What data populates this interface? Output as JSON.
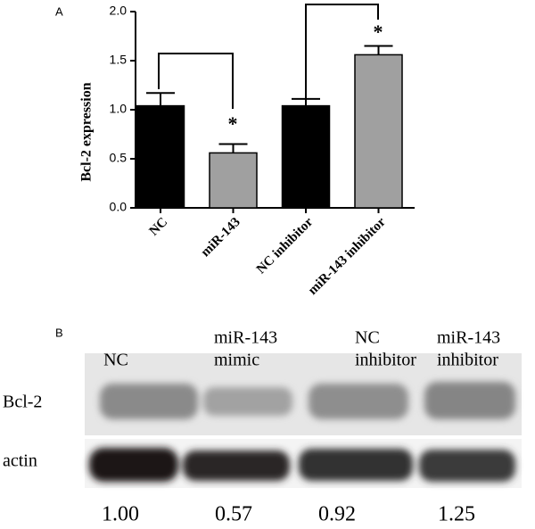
{
  "chart_data": {
    "type": "bar",
    "panel_label": "A",
    "ylabel": "Bcl-2 expression",
    "categories": [
      "NC",
      "miR-143",
      "NC inhibitor",
      "miR-143 inhibitor"
    ],
    "values": [
      1.04,
      0.56,
      1.04,
      1.56
    ],
    "errors": [
      0.13,
      0.09,
      0.07,
      0.09
    ],
    "colors": [
      "#000000",
      "#a0a0a0",
      "#000000",
      "#a0a0a0"
    ],
    "ylim": [
      0,
      2
    ],
    "yticks": [
      {
        "value": 0,
        "label": "0.0"
      },
      {
        "value": 0.5,
        "label": "0.5"
      },
      {
        "value": 1,
        "label": "1.0"
      },
      {
        "value": 1.5,
        "label": "1.5"
      },
      {
        "value": 2,
        "label": "2.0"
      }
    ],
    "annotations": [
      "*",
      "*"
    ]
  },
  "blot": {
    "panel_label": "B",
    "columns": [
      [
        "NC"
      ],
      [
        "miR-143",
        "mimic"
      ],
      [
        "NC",
        "inhibitor"
      ],
      [
        "miR-143",
        "inhibitor"
      ]
    ],
    "rows": [
      "Bcl-2",
      "actin"
    ],
    "ratios": [
      "1.00",
      "0.57",
      "0.92",
      "1.25"
    ]
  }
}
